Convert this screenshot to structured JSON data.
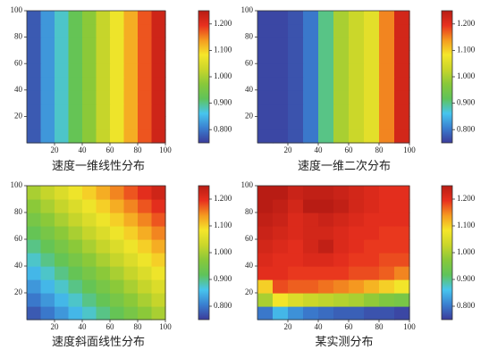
{
  "chart_data": [
    {
      "type": "heatmap",
      "caption": "速度一维线性分布",
      "x": [
        5,
        15,
        25,
        35,
        45,
        55,
        65,
        75,
        85,
        95
      ],
      "y": [
        5,
        15,
        25,
        35,
        45,
        55,
        65,
        75,
        85,
        95
      ],
      "z": [
        [
          0.775,
          0.825,
          0.875,
          0.925,
          0.975,
          1.025,
          1.075,
          1.125,
          1.175,
          1.225
        ],
        [
          0.775,
          0.825,
          0.875,
          0.925,
          0.975,
          1.025,
          1.075,
          1.125,
          1.175,
          1.225
        ],
        [
          0.775,
          0.825,
          0.875,
          0.925,
          0.975,
          1.025,
          1.075,
          1.125,
          1.175,
          1.225
        ],
        [
          0.775,
          0.825,
          0.875,
          0.925,
          0.975,
          1.025,
          1.075,
          1.125,
          1.175,
          1.225
        ],
        [
          0.775,
          0.825,
          0.875,
          0.925,
          0.975,
          1.025,
          1.075,
          1.125,
          1.175,
          1.225
        ],
        [
          0.775,
          0.825,
          0.875,
          0.925,
          0.975,
          1.025,
          1.075,
          1.125,
          1.175,
          1.225
        ],
        [
          0.775,
          0.825,
          0.875,
          0.925,
          0.975,
          1.025,
          1.075,
          1.125,
          1.175,
          1.225
        ],
        [
          0.775,
          0.825,
          0.875,
          0.925,
          0.975,
          1.025,
          1.075,
          1.125,
          1.175,
          1.225
        ],
        [
          0.775,
          0.825,
          0.875,
          0.925,
          0.975,
          1.025,
          1.075,
          1.125,
          1.175,
          1.225
        ],
        [
          0.775,
          0.825,
          0.875,
          0.925,
          0.975,
          1.025,
          1.075,
          1.125,
          1.175,
          1.225
        ]
      ],
      "xlim": [
        0,
        100
      ],
      "ylim": [
        0,
        100
      ],
      "xticks": [
        20,
        40,
        60,
        80,
        100
      ],
      "yticks": [
        20,
        40,
        60,
        80,
        100
      ],
      "zlim": [
        0.75,
        1.25
      ],
      "zticks": [
        {
          "value": 0.8,
          "label": "0.800"
        },
        {
          "value": 0.9,
          "label": "0.900"
        },
        {
          "value": 1.0,
          "label": "1.000"
        },
        {
          "value": 1.1,
          "label": "1.100"
        },
        {
          "value": 1.2,
          "label": "1.200"
        }
      ],
      "colormap": [
        "#3b3b9a",
        "#3a7fd0",
        "#47c5ee",
        "#5fc35a",
        "#88c83a",
        "#c9d62a",
        "#f5e62a",
        "#f59a20",
        "#e8301e",
        "#b81c14"
      ]
    },
    {
      "type": "heatmap",
      "caption": "速度一维二次分布",
      "x": [
        5,
        15,
        25,
        35,
        45,
        55,
        65,
        75,
        85,
        95
      ],
      "y": [
        5,
        15,
        25,
        35,
        45,
        55,
        65,
        75,
        85,
        95
      ],
      "z": [
        [
          0.76,
          0.76,
          0.77,
          0.8,
          0.9,
          1.0,
          1.03,
          1.06,
          1.15,
          1.22
        ],
        [
          0.76,
          0.76,
          0.77,
          0.8,
          0.9,
          1.0,
          1.03,
          1.06,
          1.15,
          1.22
        ],
        [
          0.76,
          0.76,
          0.77,
          0.8,
          0.9,
          1.0,
          1.03,
          1.06,
          1.15,
          1.22
        ],
        [
          0.76,
          0.76,
          0.77,
          0.8,
          0.9,
          1.0,
          1.03,
          1.06,
          1.15,
          1.22
        ],
        [
          0.76,
          0.76,
          0.77,
          0.8,
          0.9,
          1.0,
          1.03,
          1.06,
          1.15,
          1.22
        ],
        [
          0.76,
          0.76,
          0.77,
          0.8,
          0.9,
          1.0,
          1.03,
          1.06,
          1.15,
          1.22
        ],
        [
          0.76,
          0.76,
          0.77,
          0.8,
          0.9,
          1.0,
          1.03,
          1.06,
          1.15,
          1.22
        ],
        [
          0.76,
          0.76,
          0.77,
          0.8,
          0.9,
          1.0,
          1.03,
          1.06,
          1.15,
          1.22
        ],
        [
          0.76,
          0.76,
          0.77,
          0.8,
          0.9,
          1.0,
          1.03,
          1.06,
          1.15,
          1.22
        ],
        [
          0.76,
          0.76,
          0.77,
          0.8,
          0.9,
          1.0,
          1.03,
          1.06,
          1.15,
          1.22
        ]
      ],
      "xlim": [
        0,
        100
      ],
      "ylim": [
        0,
        100
      ],
      "xticks": [
        20,
        40,
        60,
        80,
        100
      ],
      "yticks": [
        20,
        40,
        60,
        80,
        100
      ],
      "zlim": [
        0.75,
        1.25
      ],
      "zticks": [
        {
          "value": 0.8,
          "label": "0.800"
        },
        {
          "value": 0.9,
          "label": "0.900"
        },
        {
          "value": 1.0,
          "label": "1.000"
        },
        {
          "value": 1.1,
          "label": "1.100"
        },
        {
          "value": 1.2,
          "label": "1.200"
        }
      ],
      "colormap": [
        "#3b3b9a",
        "#3a7fd0",
        "#47c5ee",
        "#5fc35a",
        "#88c83a",
        "#c9d62a",
        "#f5e62a",
        "#f59a20",
        "#e8301e",
        "#b81c14"
      ]
    },
    {
      "type": "heatmap",
      "caption": "速度斜面线性分布",
      "x": [
        5,
        15,
        25,
        35,
        45,
        55,
        65,
        75,
        85,
        95
      ],
      "y": [
        5,
        15,
        25,
        35,
        45,
        55,
        65,
        75,
        85,
        95
      ],
      "z": [
        [
          0.775,
          0.8,
          0.825,
          0.85,
          0.875,
          0.9,
          0.925,
          0.95,
          0.975,
          1.0
        ],
        [
          0.8,
          0.825,
          0.85,
          0.875,
          0.9,
          0.925,
          0.95,
          0.975,
          1.0,
          1.025
        ],
        [
          0.825,
          0.85,
          0.875,
          0.9,
          0.925,
          0.95,
          0.975,
          1.0,
          1.025,
          1.05
        ],
        [
          0.85,
          0.875,
          0.9,
          0.925,
          0.95,
          0.975,
          1.0,
          1.025,
          1.05,
          1.075
        ],
        [
          0.875,
          0.9,
          0.925,
          0.95,
          0.975,
          1.0,
          1.025,
          1.05,
          1.075,
          1.1
        ],
        [
          0.9,
          0.925,
          0.95,
          0.975,
          1.0,
          1.025,
          1.05,
          1.075,
          1.1,
          1.125
        ],
        [
          0.925,
          0.95,
          0.975,
          1.0,
          1.025,
          1.05,
          1.075,
          1.1,
          1.125,
          1.15
        ],
        [
          0.95,
          0.975,
          1.0,
          1.025,
          1.05,
          1.075,
          1.1,
          1.125,
          1.15,
          1.175
        ],
        [
          0.975,
          1.0,
          1.025,
          1.05,
          1.075,
          1.1,
          1.125,
          1.15,
          1.175,
          1.2
        ],
        [
          1.0,
          1.025,
          1.05,
          1.075,
          1.1,
          1.125,
          1.15,
          1.175,
          1.2,
          1.225
        ]
      ],
      "xlim": [
        0,
        100
      ],
      "ylim": [
        0,
        100
      ],
      "xticks": [
        20,
        40,
        60,
        80,
        100
      ],
      "yticks": [
        20,
        40,
        60,
        80,
        100
      ],
      "zlim": [
        0.75,
        1.25
      ],
      "zticks": [
        {
          "value": 0.8,
          "label": "0.800"
        },
        {
          "value": 0.9,
          "label": "0.900"
        },
        {
          "value": 1.0,
          "label": "1.000"
        },
        {
          "value": 1.1,
          "label": "1.100"
        },
        {
          "value": 1.2,
          "label": "1.200"
        }
      ],
      "colormap": [
        "#3b3b9a",
        "#3a7fd0",
        "#47c5ee",
        "#5fc35a",
        "#88c83a",
        "#c9d62a",
        "#f5e62a",
        "#f59a20",
        "#e8301e",
        "#b81c14"
      ]
    },
    {
      "type": "heatmap",
      "caption": "某实测分布",
      "x": [
        5,
        15,
        25,
        35,
        45,
        55,
        65,
        75,
        85,
        95
      ],
      "y": [
        5,
        15,
        25,
        35,
        45,
        55,
        65,
        75,
        85,
        95
      ],
      "z": [
        [
          0.8,
          0.85,
          0.82,
          0.8,
          0.79,
          0.78,
          0.78,
          0.77,
          0.77,
          0.76
        ],
        [
          1.0,
          1.08,
          1.05,
          1.03,
          1.02,
          1.01,
          1.0,
          0.98,
          0.96,
          0.95
        ],
        [
          1.1,
          1.18,
          1.17,
          1.17,
          1.16,
          1.15,
          1.14,
          1.12,
          1.1,
          1.08
        ],
        [
          1.2,
          1.2,
          1.19,
          1.19,
          1.19,
          1.19,
          1.18,
          1.18,
          1.17,
          1.15
        ],
        [
          1.21,
          1.2,
          1.2,
          1.21,
          1.21,
          1.2,
          1.19,
          1.19,
          1.18,
          1.18
        ],
        [
          1.22,
          1.21,
          1.2,
          1.22,
          1.24,
          1.21,
          1.2,
          1.19,
          1.19,
          1.19
        ],
        [
          1.23,
          1.22,
          1.21,
          1.22,
          1.22,
          1.21,
          1.2,
          1.2,
          1.19,
          1.19
        ],
        [
          1.24,
          1.23,
          1.21,
          1.22,
          1.23,
          1.22,
          1.21,
          1.2,
          1.2,
          1.2
        ],
        [
          1.25,
          1.24,
          1.22,
          1.25,
          1.25,
          1.24,
          1.22,
          1.21,
          1.2,
          1.2
        ],
        [
          1.25,
          1.25,
          1.23,
          1.24,
          1.24,
          1.23,
          1.22,
          1.21,
          1.2,
          1.2
        ]
      ],
      "xlim": [
        0,
        100
      ],
      "ylim": [
        0,
        100
      ],
      "xticks": [
        20,
        40,
        60,
        80,
        100
      ],
      "yticks": [
        20,
        40,
        60,
        80,
        100
      ],
      "zlim": [
        0.75,
        1.25
      ],
      "zticks": [
        {
          "value": 0.8,
          "label": "0.800"
        },
        {
          "value": 0.9,
          "label": "0.900"
        },
        {
          "value": 1.0,
          "label": "1.000"
        },
        {
          "value": 1.1,
          "label": "1.100"
        },
        {
          "value": 1.2,
          "label": "1.200"
        }
      ],
      "colormap": [
        "#3b3b9a",
        "#3a7fd0",
        "#47c5ee",
        "#5fc35a",
        "#88c83a",
        "#c9d62a",
        "#f5e62a",
        "#f59a20",
        "#e8301e",
        "#b81c14"
      ]
    }
  ]
}
